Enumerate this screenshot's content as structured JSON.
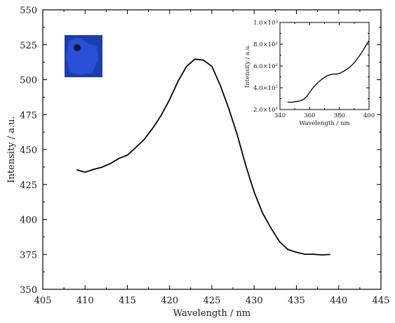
{
  "chart_data": [
    {
      "type": "line",
      "title": "",
      "xlabel": "Wavelength / nm",
      "ylabel": "Intensity / a.u.",
      "xlim": [
        405,
        445
      ],
      "ylim": [
        350,
        550
      ],
      "xticks": [
        405,
        410,
        415,
        420,
        425,
        430,
        435,
        440,
        445
      ],
      "yticks": [
        350,
        375,
        400,
        425,
        450,
        475,
        500,
        525,
        550
      ],
      "grid": false,
      "series": [
        {
          "color": "#000000",
          "x": [
            409,
            410,
            411,
            412,
            413,
            414,
            415,
            416,
            417,
            418,
            419,
            420,
            421,
            422,
            423,
            424,
            425,
            426,
            427,
            428,
            429,
            430,
            431,
            432,
            433,
            434,
            435,
            436,
            437,
            438,
            439
          ],
          "y": [
            435.5,
            433.8,
            435.8,
            437.4,
            440.0,
            443.6,
            446.0,
            451.5,
            457.3,
            465.3,
            474.5,
            485.8,
            498.9,
            509.6,
            514.7,
            514.0,
            509.6,
            495.8,
            479.3,
            460.7,
            438.8,
            419.5,
            404.5,
            393.6,
            384.1,
            378.5,
            376.5,
            375.1,
            375.1,
            374.6,
            374.9
          ]
        }
      ]
    },
    {
      "type": "line",
      "title": "",
      "xlabel": "Wavelength / nm",
      "ylabel": "Intensity / a.u.",
      "xlim": [
        340,
        400
      ],
      "ylim": [
        200,
        1000
      ],
      "xticks": [
        340,
        360,
        380,
        400
      ],
      "yticks": [
        200,
        400,
        600,
        800,
        1000
      ],
      "yticklabels": [
        "2.0×10²",
        "4.0×10²",
        "6.0×10²",
        "8.0×10²",
        "1.0×10³"
      ],
      "grid": false,
      "series": [
        {
          "color": "#000000",
          "x": [
            345,
            348,
            351,
            354,
            356,
            358,
            360,
            362,
            364,
            366,
            368,
            370,
            372,
            374,
            376,
            378,
            380,
            382,
            384,
            386,
            388,
            390,
            392,
            394,
            396,
            398,
            400
          ],
          "y": [
            268,
            268,
            273,
            282,
            295,
            320,
            357,
            395,
            426,
            453,
            476,
            495,
            512,
            520,
            525,
            527,
            531,
            545,
            560,
            579,
            601,
            630,
            667,
            702,
            744,
            790,
            834
          ]
        }
      ]
    }
  ],
  "thumbnail": {
    "bg_color": "#1c3ea8",
    "shape_color": "#2b4fd6",
    "dark_color": "#101a3a"
  }
}
